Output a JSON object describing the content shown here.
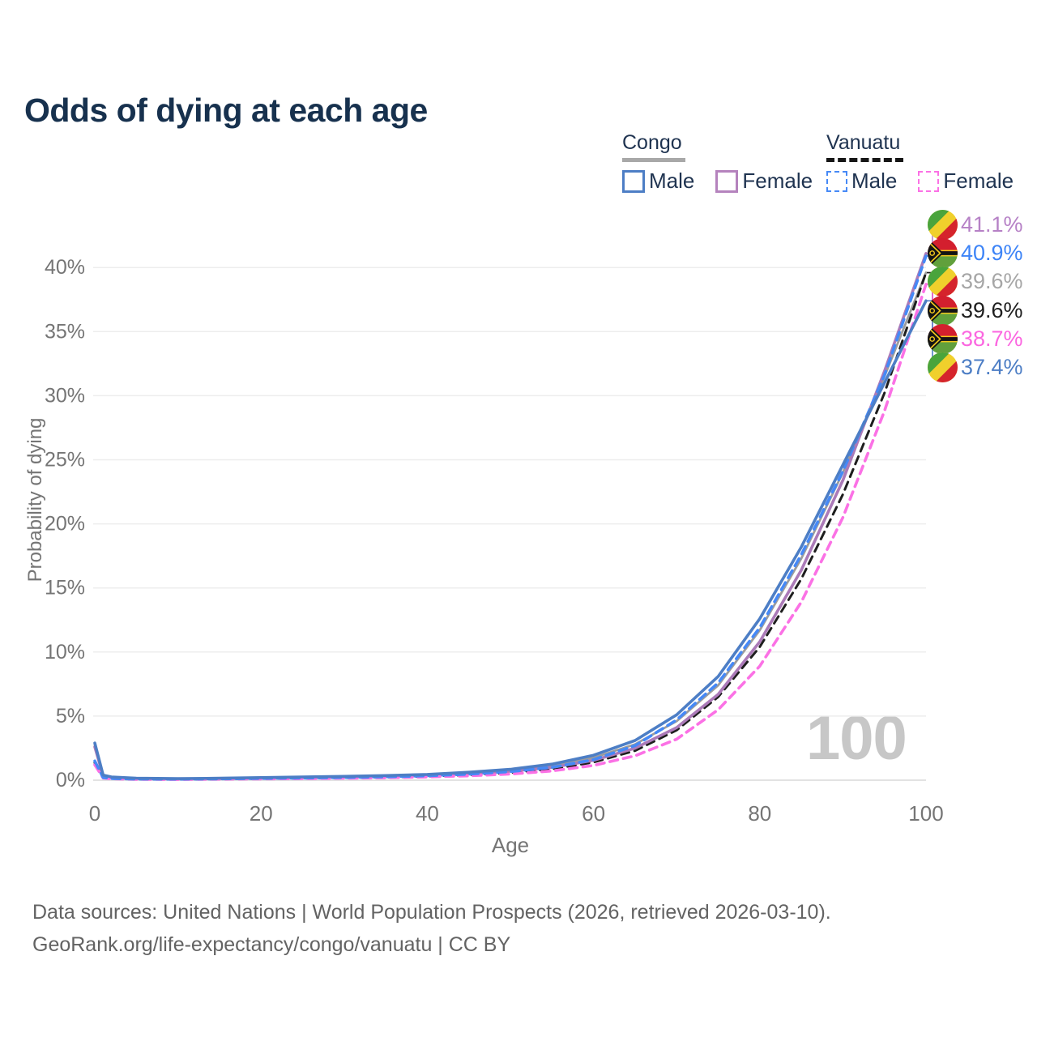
{
  "title": "Odds of dying at each age",
  "legend": {
    "groups": [
      {
        "country": "Congo",
        "line_style": "solid",
        "underline_color": "#a8a8a8",
        "items": [
          {
            "label": "Male",
            "color": "#4d7ec5"
          },
          {
            "label": "Female",
            "color": "#b583bd"
          }
        ]
      },
      {
        "country": "Vanuatu",
        "line_style": "dashed",
        "underline_color": "#161616",
        "items": [
          {
            "label": "Male",
            "color": "#4689f6"
          },
          {
            "label": "Female",
            "color": "#fb71e5"
          }
        ]
      }
    ]
  },
  "end_labels": [
    {
      "value": "41.1%",
      "flag": "congo",
      "series": "congo_female",
      "color": "#b681c6"
    },
    {
      "value": "40.9%",
      "flag": "vanuatu",
      "series": "vanuatu_male",
      "color": "#3d84f7"
    },
    {
      "value": "39.6%",
      "flag": "congo",
      "series": "congo_both",
      "color": "#a6a6a6"
    },
    {
      "value": "39.6%",
      "flag": "vanuatu",
      "series": "vanuatu_both",
      "color": "#1e1e1e"
    },
    {
      "value": "38.7%",
      "flag": "vanuatu",
      "series": "vanuatu_female",
      "color": "#fb66e0"
    },
    {
      "value": "37.4%",
      "flag": "congo",
      "series": "congo_male",
      "color": "#4d7ec5"
    }
  ],
  "watermark": "100",
  "footer": {
    "line1": "Data sources: United Nations | World Population Prospects (2026, retrieved 2026-03-10).",
    "line2": "GeoRank.org/life-expectancy/congo/vanuatu | CC BY"
  },
  "chart_data": {
    "type": "line",
    "title": "Odds of dying at each age",
    "xlabel": "Age",
    "ylabel": "Probability of dying",
    "xlim": [
      0,
      100
    ],
    "ylim_percent": [
      0,
      43
    ],
    "grid": "horizontal-only",
    "legend_position": "top-right",
    "x_ticks": [
      0,
      20,
      40,
      60,
      80,
      100
    ],
    "y_ticks": [
      "0%",
      "5%",
      "10%",
      "15%",
      "20%",
      "25%",
      "30%",
      "35%",
      "40%"
    ],
    "x": [
      0,
      1,
      2,
      5,
      10,
      15,
      20,
      25,
      30,
      35,
      40,
      45,
      50,
      55,
      60,
      65,
      70,
      75,
      80,
      85,
      90,
      95,
      100
    ],
    "series": [
      {
        "id": "congo_both",
        "name": "Congo (both sexes)",
        "country": "Congo",
        "sex": "all",
        "color": "#9c9c9c",
        "dashed": false,
        "values": [
          2.75,
          0.38,
          0.24,
          0.14,
          0.11,
          0.14,
          0.18,
          0.22,
          0.27,
          0.33,
          0.41,
          0.56,
          0.78,
          1.13,
          1.75,
          2.8,
          4.6,
          7.4,
          11.7,
          17.3,
          24.0,
          31.5,
          39.6
        ]
      },
      {
        "id": "vanuatu_both",
        "name": "Vanuatu (both sexes)",
        "country": "Vanuatu",
        "sex": "all",
        "color": "#1e1e1e",
        "dashed": true,
        "values": [
          1.35,
          0.19,
          0.12,
          0.08,
          0.07,
          0.09,
          0.12,
          0.15,
          0.18,
          0.23,
          0.3,
          0.41,
          0.58,
          0.87,
          1.4,
          2.3,
          3.9,
          6.5,
          10.4,
          15.7,
          22.3,
          30.2,
          39.6
        ]
      },
      {
        "id": "congo_female",
        "name": "Congo Female",
        "country": "Congo",
        "sex": "female",
        "color": "#ab7ab8",
        "dashed": false,
        "values": [
          2.6,
          0.35,
          0.22,
          0.13,
          0.1,
          0.12,
          0.15,
          0.19,
          0.24,
          0.29,
          0.37,
          0.5,
          0.7,
          1.0,
          1.55,
          2.5,
          4.1,
          6.7,
          10.8,
          16.4,
          23.4,
          31.9,
          41.1
        ]
      },
      {
        "id": "vanuatu_female",
        "name": "Vanuatu Female",
        "country": "Vanuatu",
        "sex": "female",
        "color": "#fb71e5",
        "dashed": true,
        "values": [
          1.2,
          0.17,
          0.11,
          0.07,
          0.06,
          0.08,
          0.1,
          0.12,
          0.15,
          0.19,
          0.25,
          0.34,
          0.48,
          0.72,
          1.15,
          1.9,
          3.2,
          5.5,
          8.9,
          13.9,
          20.5,
          28.8,
          38.7
        ]
      },
      {
        "id": "vanuatu_male",
        "name": "Vanuatu Male",
        "country": "Vanuatu",
        "sex": "male",
        "color": "#4689f6",
        "dashed": true,
        "values": [
          1.5,
          0.2,
          0.13,
          0.09,
          0.08,
          0.1,
          0.14,
          0.17,
          0.21,
          0.26,
          0.34,
          0.47,
          0.67,
          1.0,
          1.6,
          2.7,
          4.7,
          7.6,
          11.9,
          17.6,
          24.1,
          31.6,
          40.9
        ]
      },
      {
        "id": "congo_male",
        "name": "Congo Male",
        "country": "Congo",
        "sex": "male",
        "color": "#4d7ec5",
        "dashed": false,
        "values": [
          2.9,
          0.4,
          0.25,
          0.15,
          0.12,
          0.15,
          0.2,
          0.25,
          0.3,
          0.36,
          0.45,
          0.62,
          0.85,
          1.25,
          1.95,
          3.1,
          5.1,
          8.1,
          12.6,
          18.2,
          24.6,
          31.0,
          37.4
        ]
      }
    ]
  }
}
